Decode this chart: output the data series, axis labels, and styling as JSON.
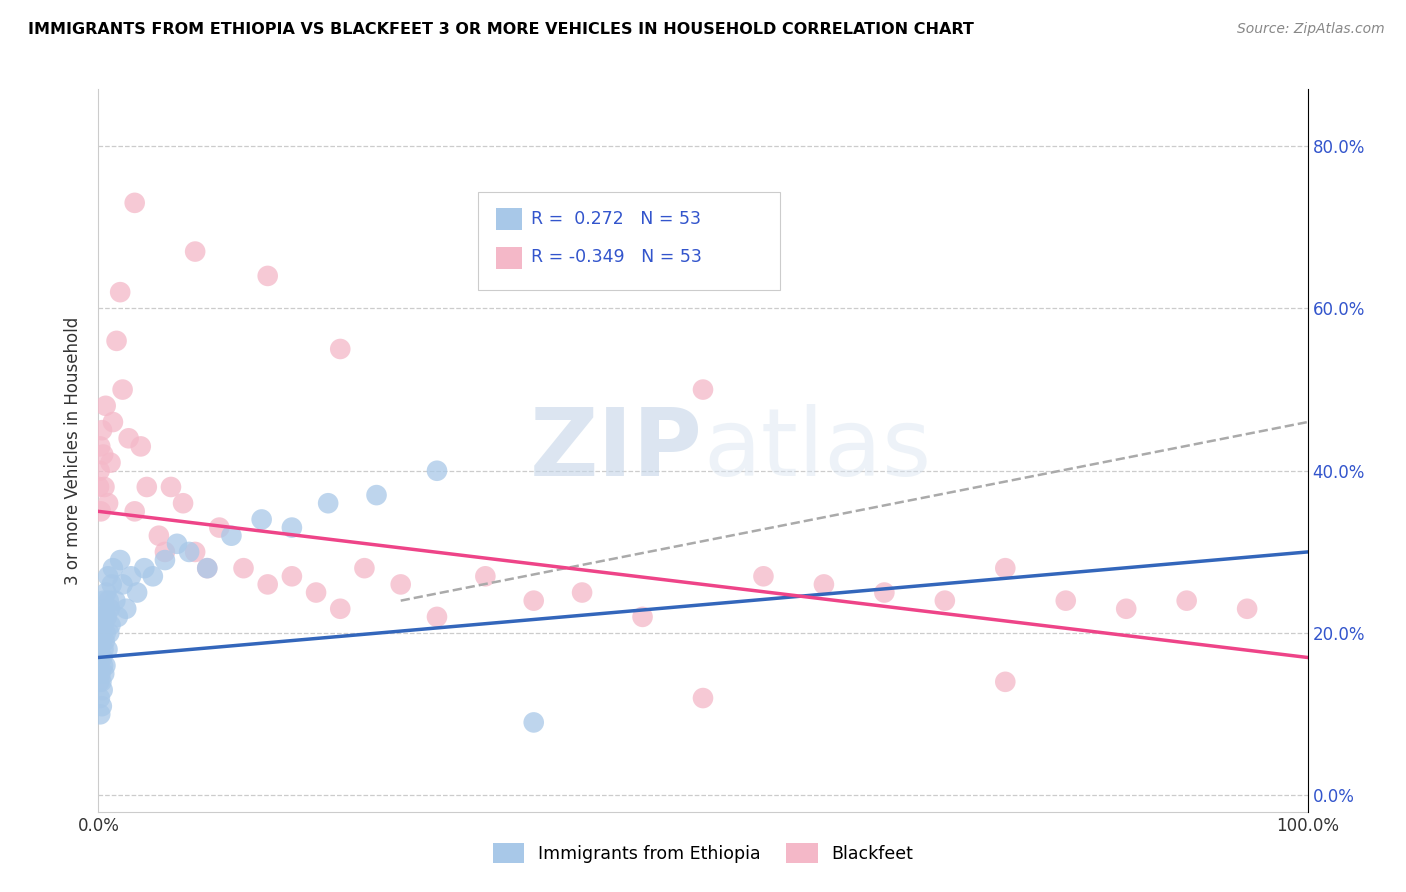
{
  "title": "IMMIGRANTS FROM ETHIOPIA VS BLACKFEET 3 OR MORE VEHICLES IN HOUSEHOLD CORRELATION CHART",
  "source": "Source: ZipAtlas.com",
  "ylabel": "3 or more Vehicles in Household",
  "legend_label1": "Immigrants from Ethiopia",
  "legend_label2": "Blackfeet",
  "color_blue": "#a8c8e8",
  "color_pink": "#f4b8c8",
  "color_line_blue": "#3366bb",
  "color_line_pink": "#ee4488",
  "color_line_gray": "#aaaaaa",
  "color_legend_text": "#3355cc",
  "watermark_zip": "ZIP",
  "watermark_atlas": "atlas",
  "xlim": [
    0,
    100
  ],
  "ylim": [
    -2,
    87
  ],
  "ytick_vals": [
    0,
    20,
    40,
    60,
    80
  ],
  "ethiopia_x": [
    0.05,
    0.08,
    0.1,
    0.12,
    0.15,
    0.18,
    0.2,
    0.22,
    0.25,
    0.28,
    0.3,
    0.32,
    0.35,
    0.38,
    0.4,
    0.42,
    0.45,
    0.48,
    0.5,
    0.52,
    0.55,
    0.58,
    0.6,
    0.65,
    0.7,
    0.75,
    0.8,
    0.85,
    0.9,
    0.95,
    1.0,
    1.1,
    1.2,
    1.4,
    1.6,
    1.8,
    2.0,
    2.3,
    2.7,
    3.2,
    3.8,
    4.5,
    5.5,
    6.5,
    7.5,
    9.0,
    11.0,
    13.5,
    16.0,
    19.0,
    23.0,
    28.0,
    36.0
  ],
  "ethiopia_y": [
    16,
    14,
    18,
    12,
    10,
    15,
    22,
    19,
    14,
    11,
    20,
    17,
    13,
    16,
    21,
    18,
    24,
    15,
    22,
    19,
    23,
    16,
    20,
    25,
    22,
    18,
    27,
    24,
    20,
    23,
    21,
    26,
    28,
    24,
    22,
    29,
    26,
    23,
    27,
    25,
    28,
    27,
    29,
    31,
    30,
    28,
    32,
    34,
    33,
    36,
    37,
    40,
    9
  ],
  "blackfeet_x": [
    0.05,
    0.1,
    0.15,
    0.2,
    0.3,
    0.4,
    0.5,
    0.6,
    0.8,
    1.0,
    1.2,
    1.5,
    1.8,
    2.0,
    2.5,
    3.0,
    3.5,
    4.0,
    5.0,
    5.5,
    6.0,
    7.0,
    8.0,
    9.0,
    10.0,
    12.0,
    14.0,
    16.0,
    18.0,
    20.0,
    22.0,
    25.0,
    28.0,
    32.0,
    36.0,
    40.0,
    45.0,
    50.0,
    55.0,
    60.0,
    65.0,
    70.0,
    75.0,
    80.0,
    85.0,
    90.0,
    95.0,
    3.0,
    8.0,
    14.0,
    20.0,
    50.0,
    75.0
  ],
  "blackfeet_y": [
    38,
    40,
    43,
    35,
    45,
    42,
    38,
    48,
    36,
    41,
    46,
    56,
    62,
    50,
    44,
    35,
    43,
    38,
    32,
    30,
    38,
    36,
    30,
    28,
    33,
    28,
    26,
    27,
    25,
    23,
    28,
    26,
    22,
    27,
    24,
    25,
    22,
    12,
    27,
    26,
    25,
    24,
    28,
    24,
    23,
    24,
    23,
    73,
    67,
    64,
    55,
    50,
    14
  ],
  "eth_trend_x0": 0,
  "eth_trend_x1": 100,
  "eth_trend_y0": 17,
  "eth_trend_y1": 30,
  "blk_trend_x0": 0,
  "blk_trend_x1": 100,
  "blk_trend_y0": 35,
  "blk_trend_y1": 17,
  "gray_trend_x0": 25,
  "gray_trend_x1": 100,
  "gray_trend_y0": 24,
  "gray_trend_y1": 46
}
